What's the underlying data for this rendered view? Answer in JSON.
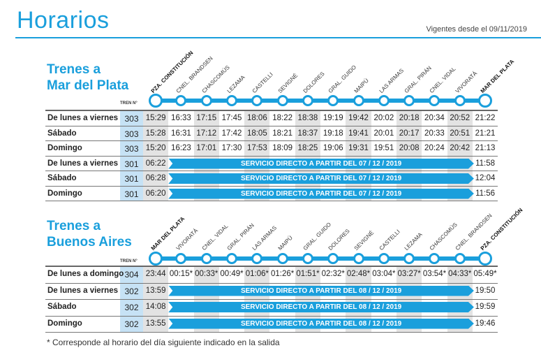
{
  "header": {
    "title": "Horarios",
    "valid_from": "Vigentes desde el 09/11/2019"
  },
  "colors": {
    "accent": "#1a9fdc",
    "shade": "#e3e3e3",
    "train_col": "#c6e2f5"
  },
  "tren_label": "TREN N°",
  "to_mdp": {
    "title_line1": "Trenes a",
    "title_line2": "Mar del Plata",
    "stations": [
      "PZA. CONSTITUCIÓN",
      "CNEL. BRANDSEN",
      "CHASCOMÚS",
      "LEZAMA",
      "CASTELLI",
      "SEVIGNÉ",
      "DOLORES",
      "GRAL. GUIDO",
      "MAIPÚ",
      "LAS ARMAS",
      "GRAL. PIRÁN",
      "CNEL. VIDAL",
      "VIVORATÁ",
      "MAR DEL PLATA"
    ],
    "rows": [
      {
        "day": "De lunes a viernes",
        "train": "303",
        "times": [
          "15:29",
          "16:33",
          "17:15",
          "17:45",
          "18:06",
          "18:22",
          "18:38",
          "19:19",
          "19:42",
          "20:02",
          "20:18",
          "20:34",
          "20:52",
          "21:22"
        ]
      },
      {
        "day": "Sábado",
        "train": "303",
        "times": [
          "15:28",
          "16:31",
          "17:12",
          "17:42",
          "18:05",
          "18:21",
          "18:37",
          "19:18",
          "19:41",
          "20:01",
          "20:17",
          "20:33",
          "20:51",
          "21:21"
        ]
      },
      {
        "day": "Domingo",
        "train": "303",
        "times": [
          "15:20",
          "16:23",
          "17:01",
          "17:30",
          "17:53",
          "18:09",
          "18:25",
          "19:06",
          "19:31",
          "19:51",
          "20:08",
          "20:24",
          "20:42",
          "21:13"
        ]
      },
      {
        "day": "De lunes a viernes",
        "train": "301",
        "depart": "06:22",
        "direct": "SERVICIO DIRECTO A PARTIR DEL 07 / 12 / 2019",
        "arrive": "11:58"
      },
      {
        "day": "Sábado",
        "train": "301",
        "depart": "06:28",
        "direct": "SERVICIO DIRECTO A PARTIR DEL 07 / 12 / 2019",
        "arrive": "12:04"
      },
      {
        "day": "Domingo",
        "train": "301",
        "depart": "06:20",
        "direct": "SERVICIO DIRECTO A PARTIR DEL 07 / 12 / 2019",
        "arrive": "11:56"
      }
    ]
  },
  "to_ba": {
    "title_line1": "Trenes a",
    "title_line2": "Buenos Aires",
    "stations": [
      "MAR DEL PLATA",
      "VIVORATÁ",
      "CNEL. VIDAL",
      "GRAL. PIRÁN",
      "LAS ARMAS",
      "MAIPÚ",
      "GRAL. GUIDO",
      "DOLORES",
      "SEVIGNÉ",
      "CASTELLI",
      "LEZAMA",
      "CHASCOMÚS",
      "CNEL. BRANDSEN",
      "PZA. CONSTITUCIÓN"
    ],
    "rows": [
      {
        "day": "De lunes a domingo",
        "train": "304",
        "times": [
          "23:44",
          "00:15*",
          "00:33*",
          "00:49*",
          "01:06*",
          "01:26*",
          "01:51*",
          "02:32*",
          "02:48*",
          "03:04*",
          "03:27*",
          "03:54*",
          "04:33*",
          "05:49*"
        ]
      },
      {
        "day": "De lunes a viernes",
        "train": "302",
        "depart": "13:59",
        "direct": "SERVICIO DIRECTO A PARTIR DEL 08 / 12 / 2019",
        "arrive": "19:50"
      },
      {
        "day": "Sábado",
        "train": "302",
        "depart": "14:08",
        "direct": "SERVICIO DIRECTO A PARTIR DEL 08 / 12 / 2019",
        "arrive": "19:59"
      },
      {
        "day": "Domingo",
        "train": "302",
        "depart": "13:55",
        "direct": "SERVICIO DIRECTO A PARTIR DEL 08 / 12 / 2019",
        "arrive": "19:46"
      }
    ]
  },
  "footnote": "* Corresponde al horario del día siguiente indicado en la salida"
}
